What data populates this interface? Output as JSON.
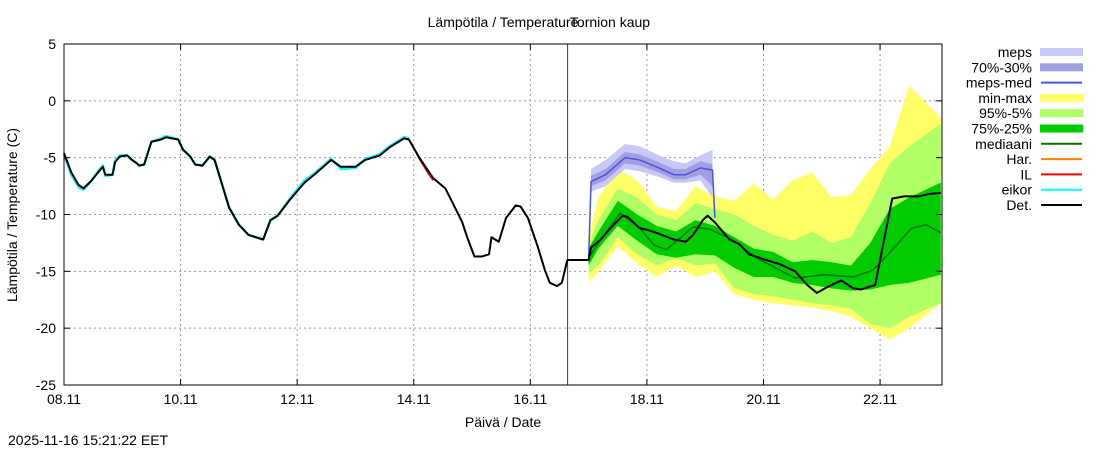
{
  "chart_data": {
    "type": "area",
    "title": "Lämpötila / Temperature",
    "station": "Tornion kaup",
    "xlabel": "Päivä / Date",
    "ylabel": "Lämpötila / Temperature (C)",
    "timestamp": "2025-11-16 15:21:22 EET",
    "xlim": [
      "2025-11-08 00:00",
      "2025-11-23 01:30"
    ],
    "ylim": [
      -25,
      5
    ],
    "grid": true,
    "legend_placement": "right",
    "now_line": "2025-11-16 15:21",
    "x_ticks": [
      {
        "t": "2025-11-08 00:00",
        "label": "08.11"
      },
      {
        "t": "2025-11-10 00:00",
        "label": "10.11"
      },
      {
        "t": "2025-11-12 00:00",
        "label": "12.11"
      },
      {
        "t": "2025-11-14 00:00",
        "label": "14.11"
      },
      {
        "t": "2025-11-16 00:00",
        "label": "16.11"
      },
      {
        "t": "2025-11-18 00:00",
        "label": "18.11"
      },
      {
        "t": "2025-11-20 00:00",
        "label": "20.11"
      },
      {
        "t": "2025-11-22 00:00",
        "label": "22.11"
      }
    ],
    "y_ticks": [
      5,
      0,
      -5,
      -10,
      -15,
      -20,
      -25
    ],
    "legend": [
      {
        "label": "meps",
        "color": "#c8c8f8",
        "kind": "band"
      },
      {
        "label": "70%-30%",
        "color": "#a0a0e0",
        "kind": "band"
      },
      {
        "label": "meps-med",
        "color": "#5050e0",
        "kind": "line"
      },
      {
        "label": "min-max",
        "color": "#ffff66",
        "kind": "band"
      },
      {
        "label": "95%-5%",
        "color": "#b0ff66",
        "kind": "band"
      },
      {
        "label": "75%-25%",
        "color": "#00cc00",
        "kind": "band"
      },
      {
        "label": "mediaani",
        "color": "#007700",
        "kind": "line"
      },
      {
        "label": "Har.",
        "color": "#ff8000",
        "kind": "line"
      },
      {
        "label": "IL",
        "color": "#ff0000",
        "kind": "line"
      },
      {
        "label": "eikor",
        "color": "#00ffff",
        "kind": "line"
      },
      {
        "label": "Det.",
        "color": "#000000",
        "kind": "line"
      }
    ],
    "bands_time": [
      "2025-11-17 00:00",
      "2025-11-17 04:00",
      "2025-11-17 12:00",
      "2025-11-17 20:00",
      "2025-11-18 04:00",
      "2025-11-18 12:00",
      "2025-11-18 20:00",
      "2025-11-19 04:00",
      "2025-11-19 12:00",
      "2025-11-19 20:00",
      "2025-11-20 04:00",
      "2025-11-20 12:00",
      "2025-11-20 20:00",
      "2025-11-21 04:00",
      "2025-11-21 12:00",
      "2025-11-21 20:00",
      "2025-11-22 04:00",
      "2025-11-22 12:00",
      "2025-11-23 01:00"
    ],
    "min_max": {
      "low": [
        -16,
        -15,
        -12.8,
        -14.3,
        -15.5,
        -14.5,
        -15.5,
        -15,
        -17,
        -17.5,
        -17.8,
        -18,
        -18.2,
        -18.5,
        -19,
        -20,
        -21,
        -20,
        -17.8
      ],
      "high": [
        -12,
        -8.5,
        -6,
        -7,
        -9.3,
        -9.7,
        -7.5,
        -8.4,
        -8.8,
        -7.3,
        -8.7,
        -7,
        -6.3,
        -8.5,
        -8.3,
        -6,
        -4,
        1.3,
        -1.5
      ]
    },
    "p95_5": {
      "low": [
        -15.2,
        -14.5,
        -12,
        -13.5,
        -14.5,
        -13.8,
        -14.5,
        -14.3,
        -16.5,
        -17,
        -17.2,
        -17.5,
        -17.8,
        -18,
        -18.3,
        -19.6,
        -20,
        -19,
        -17.8
      ],
      "high": [
        -12.7,
        -10.5,
        -7.7,
        -8.5,
        -10,
        -10.5,
        -9,
        -9.5,
        -10,
        -11,
        -11.8,
        -12.3,
        -11.5,
        -12.5,
        -12,
        -9,
        -5.5,
        -4,
        -2
      ]
    },
    "p75_25": {
      "low": [
        -14.5,
        -13,
        -11,
        -12.3,
        -13.5,
        -13.8,
        -13.5,
        -13.6,
        -14.7,
        -15.5,
        -15.5,
        -16,
        -16.2,
        -16.5,
        -16.7,
        -16.6,
        -16.2,
        -16,
        -15.3
      ],
      "high": [
        -13,
        -11.5,
        -8.8,
        -10,
        -11,
        -11.5,
        -10.5,
        -11,
        -12,
        -13,
        -13.3,
        -14.2,
        -14,
        -14.2,
        -14.5,
        -12.5,
        -9.5,
        -8.5,
        -7.2
      ]
    },
    "meps": {
      "time": [
        "2025-11-17 01:00",
        "2025-11-17 07:00",
        "2025-11-17 15:00",
        "2025-11-17 21:00",
        "2025-11-18 05:00",
        "2025-11-18 11:00",
        "2025-11-18 16:00",
        "2025-11-18 22:00",
        "2025-11-19 03:00"
      ],
      "low": [
        -8,
        -7.5,
        -6,
        -6.2,
        -6.7,
        -7.2,
        -7.2,
        -7,
        -8.5
      ],
      "high": [
        -6,
        -5.2,
        -3.8,
        -4,
        -4.8,
        -5.3,
        -5.5,
        -4.8,
        -4.3
      ],
      "p70_low": [
        -7.5,
        -7,
        -5.5,
        -5.7,
        -6.3,
        -6.9,
        -6.9,
        -6.5,
        -7.5
      ],
      "p70_high": [
        -6.6,
        -6,
        -4.5,
        -4.7,
        -5.4,
        -6,
        -6,
        -5.3,
        -5.6
      ]
    },
    "series": [
      {
        "name": "meps-med",
        "color": "#5050e0",
        "x": [
          "2025-11-17 00:00",
          "2025-11-17 01:00",
          "2025-11-17 07:00",
          "2025-11-17 15:00",
          "2025-11-17 21:00",
          "2025-11-18 05:00",
          "2025-11-18 11:00",
          "2025-11-18 16:00",
          "2025-11-18 22:00",
          "2025-11-19 03:00",
          "2025-11-19 04:00"
        ],
        "y": [
          -14,
          -7.1,
          -6.5,
          -5.0,
          -5.2,
          -5.9,
          -6.5,
          -6.5,
          -5.9,
          -6.1,
          -10.3
        ]
      },
      {
        "name": "mediaani",
        "color": "#007700",
        "x": [
          "2025-11-17 00:00",
          "2025-11-17 05:00",
          "2025-11-17 13:00",
          "2025-11-17 21:00",
          "2025-11-18 03:00",
          "2025-11-18 08:00",
          "2025-11-18 19:00",
          "2025-11-19 02:00",
          "2025-11-19 11:00",
          "2025-11-19 21:00",
          "2025-11-20 13:00",
          "2025-11-21 01:00",
          "2025-11-21 13:00",
          "2025-11-21 21:00",
          "2025-11-22 05:00",
          "2025-11-22 13:00",
          "2025-11-22 19:00",
          "2025-11-23 01:00"
        ],
        "y": [
          -13.8,
          -12.2,
          -9.9,
          -11.2,
          -12.7,
          -13.1,
          -11.1,
          -11.3,
          -12.2,
          -13.8,
          -15.6,
          -15.3,
          -15.5,
          -14.9,
          -13.1,
          -11.2,
          -10.9,
          -11.6
        ]
      },
      {
        "name": "eikor",
        "color": "#00ffff",
        "x": [
          "2025-11-08 00:00",
          "2025-11-08 03:00",
          "2025-11-08 06:00",
          "2025-11-08 08:00",
          "2025-11-08 11:00",
          "2025-11-08 14:00",
          "2025-11-08 16:00",
          "2025-11-08 17:00",
          "2025-11-08 20:00",
          "2025-11-08 21:00",
          "2025-11-08 23:00",
          "2025-11-09 02:00",
          "2025-11-09 04:00",
          "2025-11-09 06:00",
          "2025-11-09 07:00",
          "2025-11-09 09:00",
          "2025-11-09 12:00",
          "2025-11-09 16:00",
          "2025-11-09 18:00",
          "2025-11-09 23:00",
          "2025-11-10 01:00",
          "2025-11-10 04:00",
          "2025-11-10 06:00",
          "2025-11-10 09:00",
          "2025-11-10 12:00",
          "2025-11-10 14:00",
          "2025-11-10 20:00",
          "2025-11-11 00:00",
          "2025-11-11 04:00",
          "2025-11-11 10:00",
          "2025-11-11 13:00",
          "2025-11-11 16:00",
          "2025-11-11 21:00",
          "2025-11-12 03:00",
          "2025-11-12 07:00",
          "2025-11-12 14:00",
          "2025-11-12 18:00",
          "2025-11-13 00:00",
          "2025-11-13 04:00",
          "2025-11-13 10:00",
          "2025-11-13 14:00",
          "2025-11-13 20:00",
          "2025-11-13 22:00"
        ],
        "y": [
          -4.7,
          -6.5,
          -7.6,
          -7.8,
          -7.1,
          -6.2,
          -5.7,
          -6.6,
          -6.5,
          -5.3,
          -4.8,
          -4.8,
          -5.2,
          -5.5,
          -5.7,
          -5.6,
          -3.6,
          -3.3,
          -3.1,
          -3.4,
          -4.3,
          -4.9,
          -5.6,
          -5.7,
          -4.9,
          -5.2,
          -9.4,
          -10.9,
          -11.8,
          -12.2,
          -10.5,
          -10.1,
          -8.6,
          -7.0,
          -6.4,
          -5.1,
          -6.0,
          -5.9,
          -5.1,
          -4.7,
          -4.0,
          -3.2,
          -3.3
        ]
      },
      {
        "name": "Har.",
        "color": "#ff8000",
        "x": [
          "2025-11-14 01:00",
          "2025-11-14 05:00"
        ],
        "y": [
          -4.6,
          -6.0
        ]
      },
      {
        "name": "IL",
        "color": "#ff0000",
        "x": [
          "2025-11-14 02:00",
          "2025-11-14 06:00",
          "2025-11-14 08:00"
        ],
        "y": [
          -5.0,
          -6.4,
          -7.0
        ]
      },
      {
        "name": "Det.",
        "color": "#000000",
        "x": [
          "2025-11-08 00:00",
          "2025-11-08 03:00",
          "2025-11-08 06:00",
          "2025-11-08 08:00",
          "2025-11-08 11:00",
          "2025-11-08 14:00",
          "2025-11-08 16:00",
          "2025-11-08 17:00",
          "2025-11-08 20:00",
          "2025-11-08 21:00",
          "2025-11-08 23:00",
          "2025-11-09 02:00",
          "2025-11-09 04:00",
          "2025-11-09 06:00",
          "2025-11-09 07:00",
          "2025-11-09 09:00",
          "2025-11-09 12:00",
          "2025-11-09 16:00",
          "2025-11-09 18:00",
          "2025-11-09 23:00",
          "2025-11-10 01:00",
          "2025-11-10 04:00",
          "2025-11-10 06:00",
          "2025-11-10 09:00",
          "2025-11-10 12:00",
          "2025-11-10 14:00",
          "2025-11-10 20:00",
          "2025-11-11 00:00",
          "2025-11-11 04:00",
          "2025-11-11 10:00",
          "2025-11-11 13:00",
          "2025-11-11 16:00",
          "2025-11-11 21:00",
          "2025-11-12 03:00",
          "2025-11-12 07:00",
          "2025-11-12 14:00",
          "2025-11-12 18:00",
          "2025-11-13 00:00",
          "2025-11-13 04:00",
          "2025-11-13 10:00",
          "2025-11-13 14:00",
          "2025-11-13 20:00",
          "2025-11-13 22:00",
          "2025-11-14 02:00",
          "2025-11-14 08:00",
          "2025-11-14 13:00",
          "2025-11-14 17:00",
          "2025-11-14 20:00",
          "2025-11-14 22:00",
          "2025-11-15 01:00",
          "2025-11-15 04:00",
          "2025-11-15 07:00",
          "2025-11-15 08:00",
          "2025-11-15 11:00",
          "2025-11-15 14:00",
          "2025-11-15 18:00",
          "2025-11-15 20:00",
          "2025-11-15 23:00",
          "2025-11-16 03:00",
          "2025-11-16 06:00",
          "2025-11-16 08:00",
          "2025-11-16 11:00",
          "2025-11-16 13:00",
          "2025-11-16 15:00",
          "2025-11-16 15:21",
          "2025-11-17 00:00",
          "2025-11-17 01:00",
          "2025-11-17 05:00",
          "2025-11-17 09:00",
          "2025-11-17 14:00",
          "2025-11-17 16:00",
          "2025-11-17 21:00",
          "2025-11-18 01:00",
          "2025-11-18 05:00",
          "2025-11-18 11:00",
          "2025-11-18 16:00",
          "2025-11-18 19:00",
          "2025-11-18 23:00",
          "2025-11-19 01:00",
          "2025-11-19 04:00",
          "2025-11-19 10:00",
          "2025-11-19 14:00",
          "2025-11-19 18:00",
          "2025-11-20 01:00",
          "2025-11-20 07:00",
          "2025-11-20 13:00",
          "2025-11-20 18:00",
          "2025-11-20 22:00",
          "2025-11-21 03:00",
          "2025-11-21 08:00",
          "2025-11-21 13:00",
          "2025-11-21 16:00",
          "2025-11-21 22:00",
          "2025-11-22 05:00",
          "2025-11-22 10:00",
          "2025-11-22 16:00",
          "2025-11-22 20:00",
          "2025-11-23 01:00"
        ],
        "y": [
          -4.6,
          -6.3,
          -7.4,
          -7.7,
          -7.1,
          -6.3,
          -5.8,
          -6.5,
          -6.5,
          -5.4,
          -4.9,
          -4.8,
          -5.2,
          -5.5,
          -5.7,
          -5.6,
          -3.6,
          -3.4,
          -3.2,
          -3.4,
          -4.3,
          -4.9,
          -5.6,
          -5.7,
          -4.9,
          -5.2,
          -9.4,
          -10.9,
          -11.8,
          -12.2,
          -10.5,
          -10.1,
          -8.7,
          -7.2,
          -6.5,
          -5.2,
          -5.8,
          -5.8,
          -5.2,
          -4.8,
          -4.1,
          -3.3,
          -3.4,
          -4.9,
          -6.8,
          -7.7,
          -9.4,
          -10.7,
          -12.0,
          -13.7,
          -13.7,
          -13.5,
          -12.0,
          -12.4,
          -10.3,
          -9.2,
          -9.3,
          -10.3,
          -12.8,
          -14.9,
          -16.0,
          -16.3,
          -16.0,
          -14.2,
          -14.0,
          -14.0,
          -12.9,
          -12.2,
          -11.2,
          -10.1,
          -10.2,
          -11.2,
          -11.4,
          -11.7,
          -12.2,
          -12.4,
          -11.8,
          -10.5,
          -10.1,
          -10.7,
          -12.2,
          -12.6,
          -13.5,
          -14.0,
          -14.4,
          -15.0,
          -16.2,
          -16.9,
          -16.3,
          -15.8,
          -16.5,
          -16.6,
          -16.2,
          -8.6,
          -8.4,
          -8.4,
          -8.2,
          -8.1
        ]
      }
    ]
  }
}
